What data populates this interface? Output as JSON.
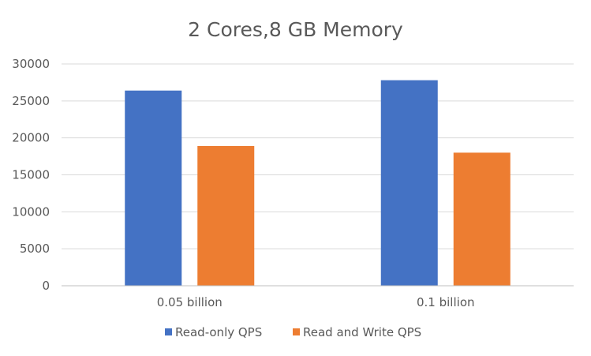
{
  "chart_data": {
    "type": "bar",
    "title": "2 Cores,8 GB Memory",
    "categories": [
      "0.05 billion",
      "0.1 billion"
    ],
    "series": [
      {
        "name": "Read-only QPS",
        "values": [
          26400,
          27800
        ],
        "color": "#4472c4"
      },
      {
        "name": "Read and Write QPS",
        "values": [
          18900,
          18000
        ],
        "color": "#ed7d31"
      }
    ],
    "xlabel": "",
    "ylabel": "",
    "ylim": [
      0,
      30000
    ],
    "yticks": [
      0,
      5000,
      10000,
      15000,
      20000,
      25000,
      30000
    ],
    "grid": true,
    "legend": "bottom"
  }
}
